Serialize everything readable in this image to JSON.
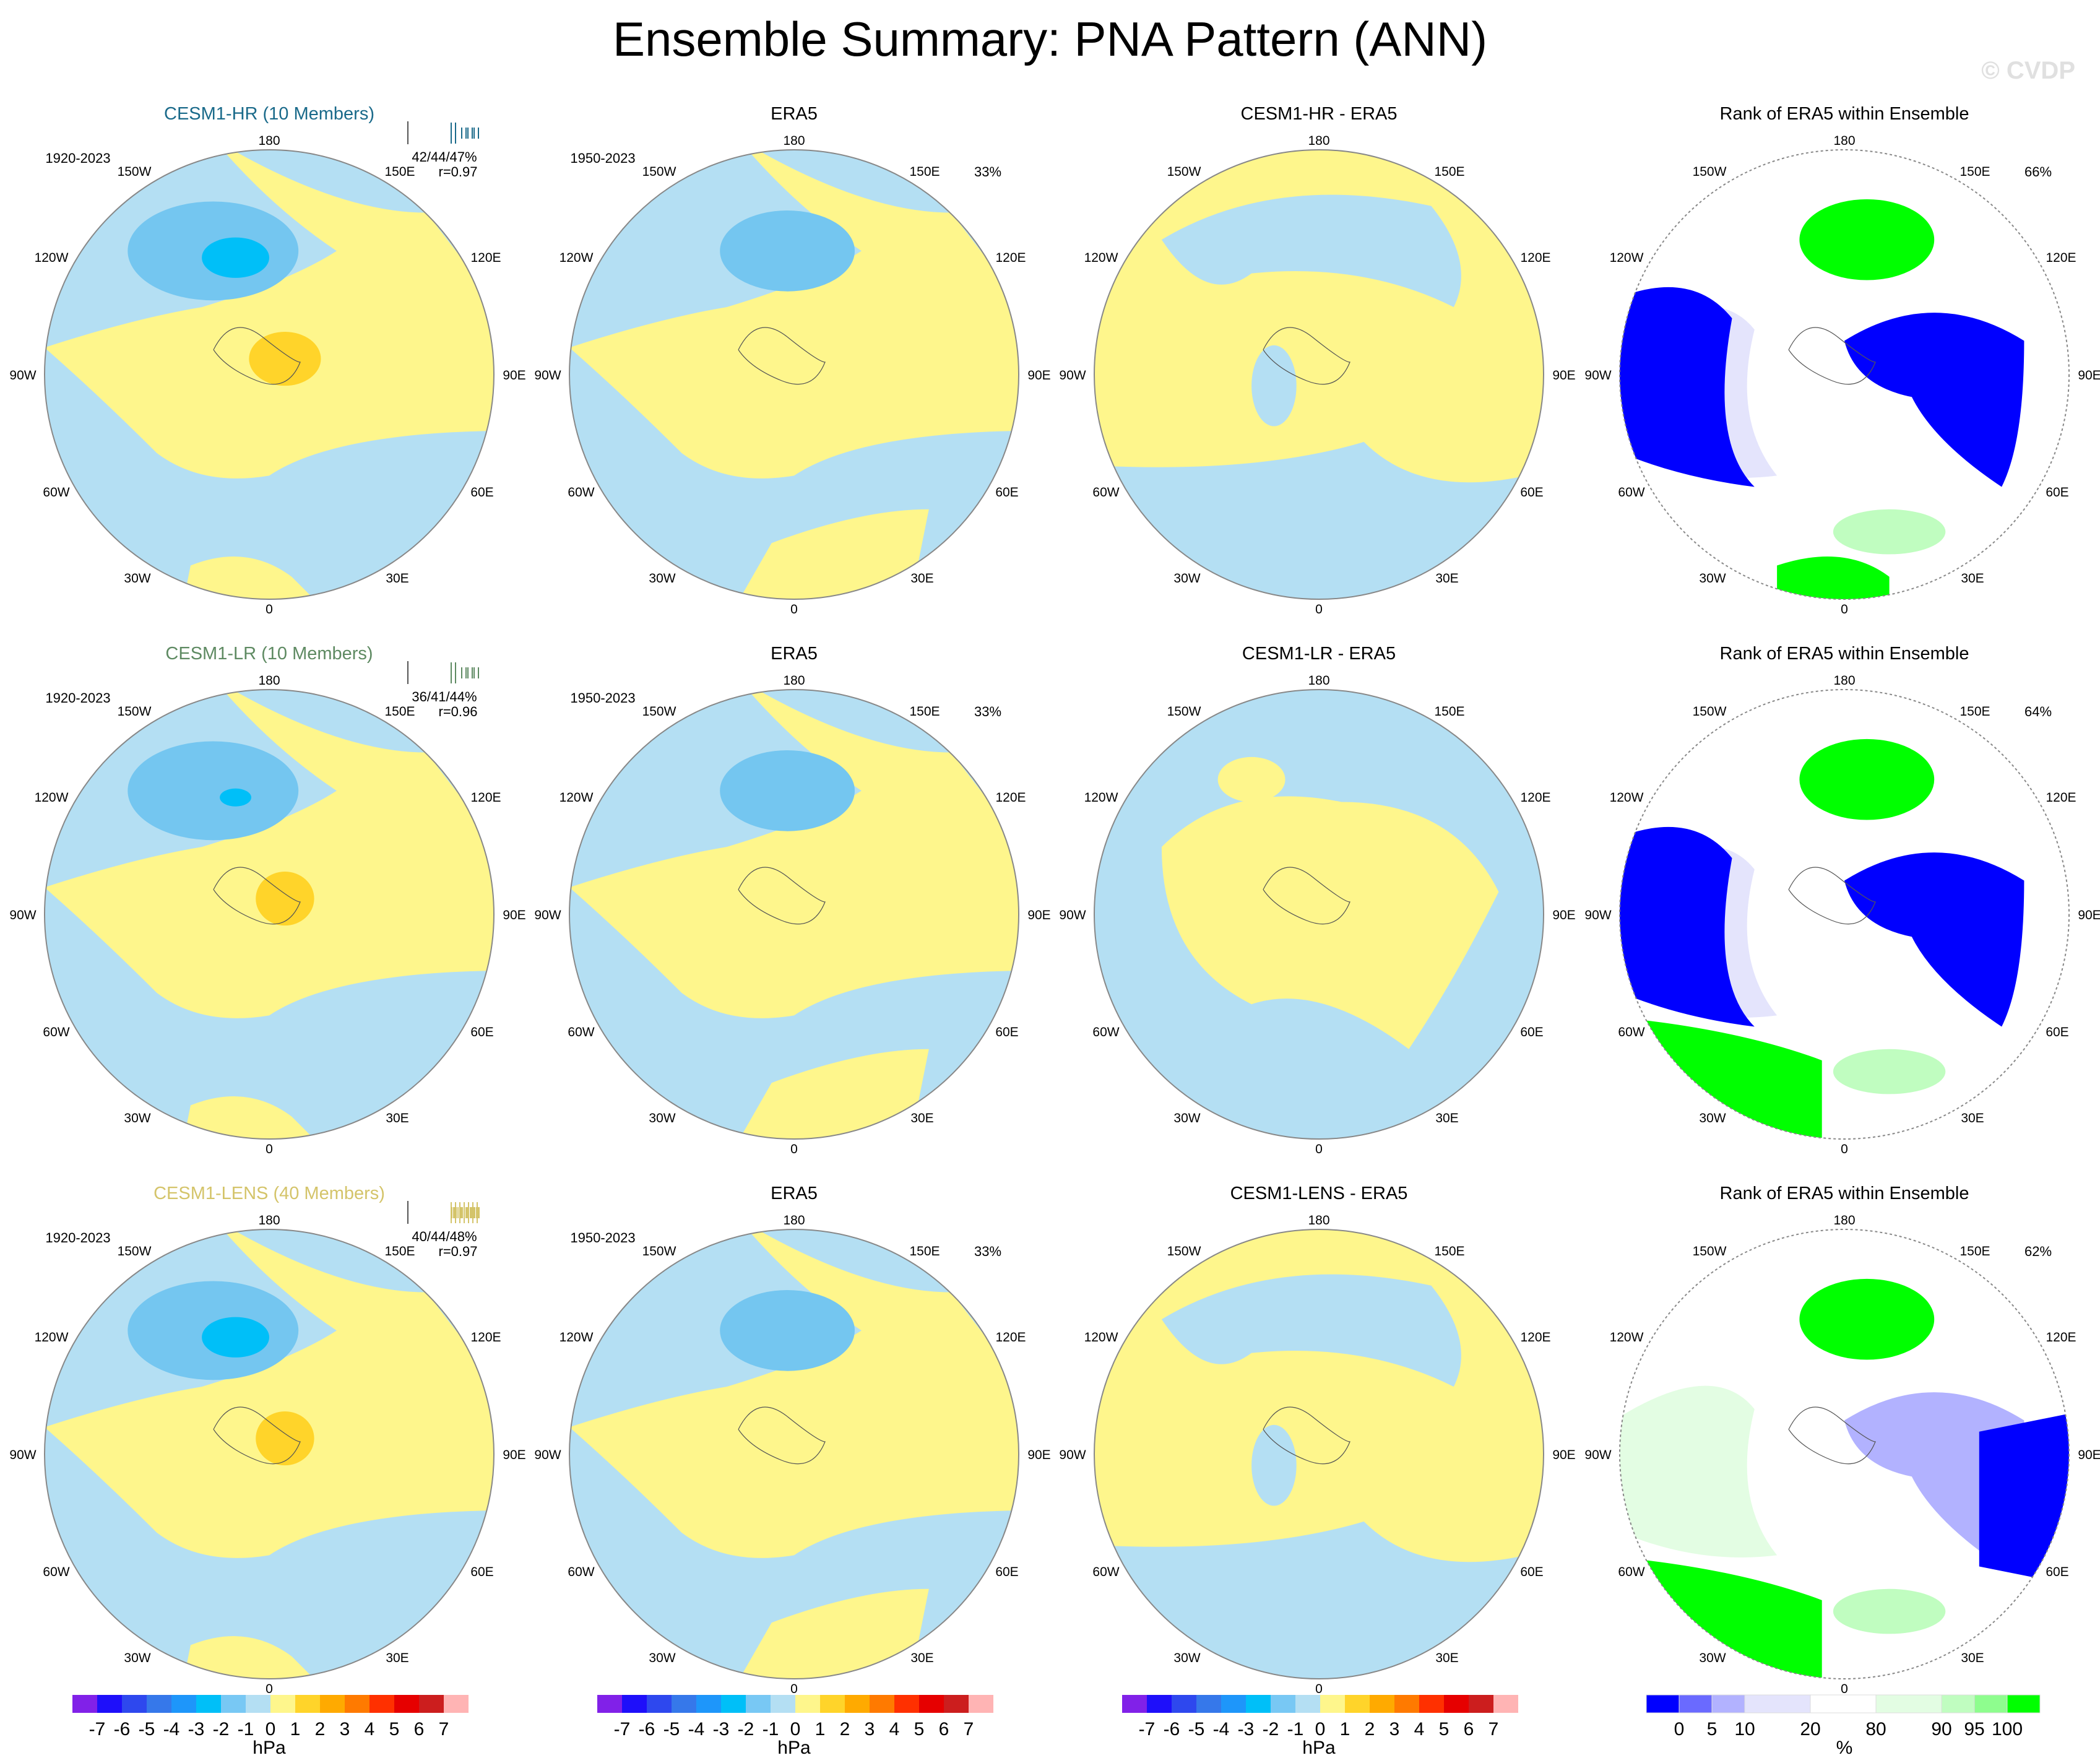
{
  "figure_title": "Ensemble Summary: PNA Pattern (ANN)",
  "watermark": "© CVDP",
  "lon_labels": [
    "180",
    "150E",
    "120E",
    "90E",
    "60E",
    "30E",
    "0",
    "30W",
    "60W",
    "90W",
    "120W",
    "150W"
  ],
  "rows": [
    {
      "model": {
        "title": "CESM1-HR (10 Members)",
        "color": "#1a6a8a",
        "years": "1920-2023",
        "pct_range": "42/44/47%",
        "r": "r=0.97"
      },
      "obs": {
        "title": "ERA5",
        "years": "1950-2023",
        "pct": "33%"
      },
      "diff": {
        "title": "CESM1-HR - ERA5"
      },
      "rank": {
        "title": "Rank of ERA5 within Ensemble",
        "pct": "66%"
      }
    },
    {
      "model": {
        "title": "CESM1-LR (10 Members)",
        "color": "#5e8a62",
        "years": "1920-2023",
        "pct_range": "36/41/44%",
        "r": "r=0.96"
      },
      "obs": {
        "title": "ERA5",
        "years": "1950-2023",
        "pct": "33%"
      },
      "diff": {
        "title": "CESM1-LR - ERA5"
      },
      "rank": {
        "title": "Rank of ERA5 within Ensemble",
        "pct": "64%"
      }
    },
    {
      "model": {
        "title": "CESM1-LENS (40 Members)",
        "color": "#d4c46a",
        "years": "1920-2023",
        "pct_range": "40/44/48%",
        "r": "r=0.97"
      },
      "obs": {
        "title": "ERA5",
        "years": "1950-2023",
        "pct": "33%"
      },
      "diff": {
        "title": "CESM1-LENS - ERA5"
      },
      "rank": {
        "title": "Rank of ERA5 within Ensemble",
        "pct": "62%"
      }
    }
  ],
  "chart_data": {
    "type": "heatmap",
    "projection": "north polar stereographic",
    "colorbar_hpa": {
      "unit": "hPa",
      "ticks": [
        "-7",
        "-6",
        "-5",
        "-4",
        "-3",
        "-2",
        "-1",
        "0",
        "1",
        "2",
        "3",
        "4",
        "5",
        "6",
        "7"
      ],
      "colors": [
        "#8121e8",
        "#1e0ffa",
        "#2e48ee",
        "#3678ea",
        "#1e96fa",
        "#00bff8",
        "#78c8f4",
        "#b4dff3",
        "#fef68c",
        "#ffd42a",
        "#ffaa00",
        "#ff7a00",
        "#ff3000",
        "#e60000",
        "#cc1e1e",
        "#ffb4b4"
      ]
    },
    "colorbar_rank": {
      "unit": "%",
      "ticks": [
        "0",
        "5",
        "10",
        "20",
        "80",
        "90",
        "95",
        "100"
      ],
      "colors": [
        "#0000ff",
        "#6a6aff",
        "#b2b2ff",
        "#e4e4fc",
        "#ffffff",
        "#e3fde3",
        "#c0fdc0",
        "#8efd8e",
        "#00ff00"
      ]
    }
  }
}
